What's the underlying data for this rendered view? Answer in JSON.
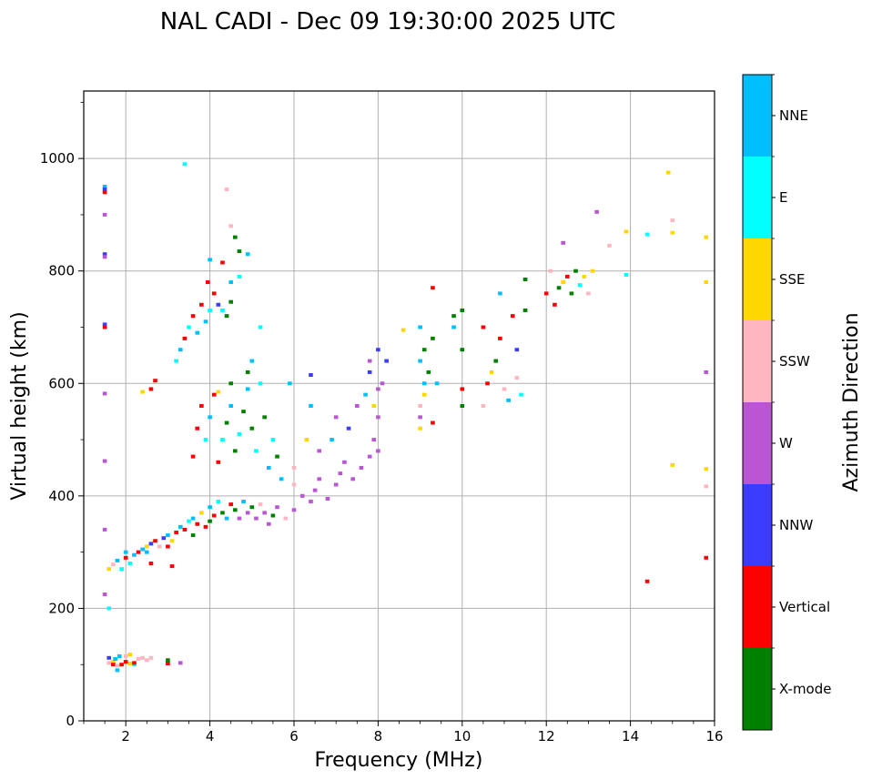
{
  "chart_data": {
    "type": "scatter",
    "title": "NAL CADI - Dec 09 19:30:00 2025 UTC",
    "xlabel": "Frequency (MHz)",
    "ylabel": "Virtual height (km)",
    "xlim": [
      1,
      16
    ],
    "ylim": [
      0,
      1120
    ],
    "xticks": [
      2,
      4,
      6,
      8,
      10,
      12,
      14,
      16
    ],
    "yticks": [
      0,
      200,
      400,
      600,
      800,
      1000
    ],
    "grid": true,
    "colorbar": {
      "label": "Azimuth Direction",
      "position": "right",
      "categories": [
        {
          "name": "X-mode",
          "color": "#008000"
        },
        {
          "name": "Vertical",
          "color": "#ff0000"
        },
        {
          "name": "NNW",
          "color": "#3c3cff"
        },
        {
          "name": "W",
          "color": "#ba55d3"
        },
        {
          "name": "SSW",
          "color": "#ffb6c1"
        },
        {
          "name": "SSE",
          "color": "#ffd700"
        },
        {
          "name": "E",
          "color": "#00ffff"
        },
        {
          "name": "NNE",
          "color": "#00bfff"
        }
      ]
    },
    "points_format": [
      "frequency_MHz",
      "virtual_height_km",
      "azimuth_category"
    ],
    "points": [
      [
        1.5,
        950,
        "NNE"
      ],
      [
        1.5,
        945,
        "NNW"
      ],
      [
        1.5,
        940,
        "Vertical"
      ],
      [
        1.5,
        900,
        "W"
      ],
      [
        1.5,
        830,
        "NNW"
      ],
      [
        1.5,
        825,
        "W"
      ],
      [
        1.5,
        705,
        "NNW"
      ],
      [
        1.5,
        700,
        "Vertical"
      ],
      [
        1.5,
        582,
        "W"
      ],
      [
        1.5,
        462,
        "W"
      ],
      [
        1.5,
        340,
        "W"
      ],
      [
        1.5,
        225,
        "W"
      ],
      [
        1.6,
        200,
        "E"
      ],
      [
        1.6,
        112,
        "NNW"
      ],
      [
        1.6,
        103,
        "SSW"
      ],
      [
        1.7,
        105,
        "SSE"
      ],
      [
        1.7,
        100,
        "Vertical"
      ],
      [
        1.75,
        110,
        "NNE"
      ],
      [
        1.8,
        98,
        "SSW"
      ],
      [
        1.8,
        90,
        "NNE"
      ],
      [
        1.85,
        115,
        "NNE"
      ],
      [
        1.9,
        100,
        "Vertical"
      ],
      [
        2.0,
        115,
        "SSW"
      ],
      [
        2.0,
        105,
        "Vertical"
      ],
      [
        2.1,
        118,
        "SSE"
      ],
      [
        2.1,
        102,
        "SSE"
      ],
      [
        2.2,
        100,
        "E"
      ],
      [
        2.3,
        110,
        "SSW"
      ],
      [
        2.4,
        112,
        "SSW"
      ],
      [
        2.5,
        108,
        "SSW"
      ],
      [
        2.6,
        112,
        "SSW"
      ],
      [
        2.2,
        103,
        "Vertical"
      ],
      [
        3.0,
        108,
        "X-mode"
      ],
      [
        3.0,
        102,
        "Vertical"
      ],
      [
        3.3,
        103,
        "W"
      ],
      [
        1.6,
        270,
        "SSE"
      ],
      [
        1.7,
        278,
        "SSW"
      ],
      [
        1.8,
        285,
        "NNE"
      ],
      [
        1.9,
        270,
        "E"
      ],
      [
        2.0,
        290,
        "Vertical"
      ],
      [
        2.0,
        300,
        "NNE"
      ],
      [
        2.1,
        280,
        "E"
      ],
      [
        2.2,
        295,
        "NNE"
      ],
      [
        2.3,
        300,
        "Vertical"
      ],
      [
        2.4,
        305,
        "NNE"
      ],
      [
        2.5,
        310,
        "SSE"
      ],
      [
        2.5,
        300,
        "NNE"
      ],
      [
        2.6,
        315,
        "NNW"
      ],
      [
        2.7,
        320,
        "Vertical"
      ],
      [
        2.8,
        310,
        "SSW"
      ],
      [
        2.9,
        325,
        "NNW"
      ],
      [
        3.0,
        330,
        "NNE"
      ],
      [
        3.0,
        310,
        "Vertical"
      ],
      [
        3.1,
        320,
        "SSE"
      ],
      [
        3.2,
        335,
        "Vertical"
      ],
      [
        3.3,
        345,
        "NNE"
      ],
      [
        3.4,
        340,
        "Vertical"
      ],
      [
        3.5,
        355,
        "E"
      ],
      [
        3.6,
        330,
        "X-mode"
      ],
      [
        3.6,
        360,
        "NNE"
      ],
      [
        3.7,
        350,
        "Vertical"
      ],
      [
        3.8,
        370,
        "SSE"
      ],
      [
        3.9,
        345,
        "Vertical"
      ],
      [
        4.0,
        355,
        "X-mode"
      ],
      [
        4.0,
        380,
        "NNE"
      ],
      [
        4.1,
        365,
        "Vertical"
      ],
      [
        4.2,
        390,
        "E"
      ],
      [
        4.3,
        370,
        "X-mode"
      ],
      [
        4.4,
        360,
        "NNE"
      ],
      [
        4.5,
        385,
        "Vertical"
      ],
      [
        4.6,
        375,
        "X-mode"
      ],
      [
        4.7,
        360,
        "W"
      ],
      [
        4.8,
        390,
        "NNE"
      ],
      [
        4.9,
        370,
        "W"
      ],
      [
        5.0,
        380,
        "X-mode"
      ],
      [
        5.1,
        360,
        "W"
      ],
      [
        5.2,
        385,
        "SSW"
      ],
      [
        5.3,
        370,
        "W"
      ],
      [
        5.4,
        350,
        "W"
      ],
      [
        5.5,
        365,
        "X-mode"
      ],
      [
        5.6,
        380,
        "W"
      ],
      [
        5.8,
        360,
        "SSW"
      ],
      [
        6.0,
        375,
        "W"
      ],
      [
        3.1,
        275,
        "Vertical"
      ],
      [
        2.6,
        280,
        "Vertical"
      ],
      [
        3.6,
        470,
        "Vertical"
      ],
      [
        3.7,
        520,
        "Vertical"
      ],
      [
        3.8,
        560,
        "Vertical"
      ],
      [
        3.9,
        500,
        "E"
      ],
      [
        4.0,
        540,
        "NNE"
      ],
      [
        4.1,
        580,
        "Vertical"
      ],
      [
        4.2,
        460,
        "Vertical"
      ],
      [
        4.3,
        500,
        "E"
      ],
      [
        4.4,
        530,
        "X-mode"
      ],
      [
        4.5,
        560,
        "NNE"
      ],
      [
        4.6,
        480,
        "X-mode"
      ],
      [
        4.7,
        510,
        "E"
      ],
      [
        4.8,
        550,
        "X-mode"
      ],
      [
        4.9,
        590,
        "NNE"
      ],
      [
        5.0,
        520,
        "X-mode"
      ],
      [
        5.1,
        480,
        "E"
      ],
      [
        5.2,
        600,
        "E"
      ],
      [
        5.3,
        540,
        "X-mode"
      ],
      [
        5.4,
        450,
        "NNE"
      ],
      [
        5.5,
        500,
        "E"
      ],
      [
        5.6,
        470,
        "X-mode"
      ],
      [
        5.7,
        430,
        "NNE"
      ],
      [
        5.9,
        600,
        "NNE"
      ],
      [
        6.0,
        450,
        "SSW"
      ],
      [
        4.9,
        620,
        "X-mode"
      ],
      [
        5.0,
        640,
        "NNE"
      ],
      [
        4.5,
        600,
        "X-mode"
      ],
      [
        4.2,
        585,
        "SSE"
      ],
      [
        3.2,
        640,
        "E"
      ],
      [
        3.3,
        660,
        "NNE"
      ],
      [
        3.4,
        680,
        "Vertical"
      ],
      [
        3.5,
        700,
        "E"
      ],
      [
        3.6,
        720,
        "Vertical"
      ],
      [
        3.7,
        690,
        "NNE"
      ],
      [
        3.8,
        740,
        "Vertical"
      ],
      [
        3.9,
        710,
        "NNE"
      ],
      [
        3.95,
        780,
        "Vertical"
      ],
      [
        4.0,
        730,
        "E"
      ],
      [
        4.1,
        760,
        "Vertical"
      ],
      [
        4.2,
        740,
        "NNW"
      ],
      [
        4.3,
        730,
        "E"
      ],
      [
        4.4,
        720,
        "X-mode"
      ],
      [
        4.0,
        820,
        "NNE"
      ],
      [
        4.3,
        815,
        "Vertical"
      ],
      [
        4.5,
        780,
        "NNE"
      ],
      [
        4.5,
        745,
        "X-mode"
      ],
      [
        4.7,
        790,
        "E"
      ],
      [
        4.6,
        860,
        "X-mode"
      ],
      [
        4.5,
        880,
        "SSW"
      ],
      [
        4.7,
        835,
        "X-mode"
      ],
      [
        4.9,
        830,
        "NNE"
      ],
      [
        4.4,
        945,
        "SSW"
      ],
      [
        3.4,
        990,
        "E"
      ],
      [
        2.7,
        605,
        "Vertical"
      ],
      [
        2.6,
        590,
        "Vertical"
      ],
      [
        2.4,
        585,
        "SSE"
      ],
      [
        5.2,
        700,
        "E"
      ],
      [
        6.0,
        420,
        "SSW"
      ],
      [
        6.2,
        400,
        "W"
      ],
      [
        6.4,
        390,
        "W"
      ],
      [
        6.5,
        410,
        "W"
      ],
      [
        6.6,
        430,
        "W"
      ],
      [
        6.8,
        395,
        "W"
      ],
      [
        7.0,
        420,
        "W"
      ],
      [
        7.1,
        440,
        "W"
      ],
      [
        7.2,
        460,
        "W"
      ],
      [
        7.4,
        430,
        "W"
      ],
      [
        7.6,
        450,
        "W"
      ],
      [
        7.8,
        470,
        "W"
      ],
      [
        8.0,
        480,
        "W"
      ],
      [
        7.9,
        500,
        "W"
      ],
      [
        6.3,
        500,
        "SSE"
      ],
      [
        6.4,
        560,
        "NNE"
      ],
      [
        6.4,
        615,
        "NNW"
      ],
      [
        6.6,
        480,
        "W"
      ],
      [
        6.9,
        500,
        "NNE"
      ],
      [
        7.0,
        540,
        "W"
      ],
      [
        7.3,
        520,
        "NNW"
      ],
      [
        7.5,
        560,
        "W"
      ],
      [
        7.7,
        580,
        "NNE"
      ],
      [
        7.8,
        620,
        "NNW"
      ],
      [
        7.9,
        560,
        "SSE"
      ],
      [
        8.0,
        590,
        "W"
      ],
      [
        8.0,
        540,
        "W"
      ],
      [
        8.1,
        600,
        "W"
      ],
      [
        8.2,
        640,
        "NNW"
      ],
      [
        8.0,
        660,
        "NNW"
      ],
      [
        7.8,
        640,
        "W"
      ],
      [
        8.6,
        695,
        "SSE"
      ],
      [
        9.0,
        520,
        "SSE"
      ],
      [
        9.0,
        540,
        "W"
      ],
      [
        9.0,
        560,
        "SSW"
      ],
      [
        9.1,
        580,
        "SSE"
      ],
      [
        9.1,
        600,
        "NNE"
      ],
      [
        9.2,
        620,
        "X-mode"
      ],
      [
        9.0,
        640,
        "NNE"
      ],
      [
        9.1,
        660,
        "X-mode"
      ],
      [
        9.0,
        700,
        "NNE"
      ],
      [
        9.3,
        680,
        "X-mode"
      ],
      [
        9.4,
        600,
        "NNE"
      ],
      [
        9.3,
        530,
        "Vertical"
      ],
      [
        9.3,
        770,
        "Vertical"
      ],
      [
        9.8,
        720,
        "X-mode"
      ],
      [
        9.8,
        700,
        "NNE"
      ],
      [
        10.0,
        590,
        "Vertical"
      ],
      [
        10.0,
        560,
        "X-mode"
      ],
      [
        10.0,
        660,
        "X-mode"
      ],
      [
        10.0,
        730,
        "X-mode"
      ],
      [
        10.5,
        700,
        "Vertical"
      ],
      [
        10.5,
        560,
        "SSW"
      ],
      [
        10.6,
        600,
        "Vertical"
      ],
      [
        10.7,
        620,
        "SSE"
      ],
      [
        10.8,
        640,
        "X-mode"
      ],
      [
        10.9,
        680,
        "Vertical"
      ],
      [
        10.9,
        760,
        "NNE"
      ],
      [
        11.0,
        590,
        "SSW"
      ],
      [
        11.1,
        570,
        "NNE"
      ],
      [
        11.2,
        720,
        "Vertical"
      ],
      [
        11.3,
        660,
        "NNW"
      ],
      [
        11.3,
        610,
        "SSW"
      ],
      [
        11.4,
        580,
        "E"
      ],
      [
        11.5,
        785,
        "X-mode"
      ],
      [
        11.5,
        730,
        "X-mode"
      ],
      [
        12.0,
        760,
        "Vertical"
      ],
      [
        12.1,
        800,
        "SSW"
      ],
      [
        12.2,
        740,
        "Vertical"
      ],
      [
        12.3,
        770,
        "X-mode"
      ],
      [
        12.4,
        780,
        "SSE"
      ],
      [
        12.5,
        790,
        "Vertical"
      ],
      [
        12.6,
        760,
        "X-mode"
      ],
      [
        12.7,
        800,
        "X-mode"
      ],
      [
        12.8,
        775,
        "E"
      ],
      [
        12.9,
        790,
        "SSE"
      ],
      [
        13.0,
        760,
        "SSW"
      ],
      [
        13.1,
        800,
        "SSE"
      ],
      [
        12.4,
        850,
        "W"
      ],
      [
        13.2,
        905,
        "W"
      ],
      [
        13.5,
        845,
        "SSW"
      ],
      [
        13.9,
        870,
        "SSE"
      ],
      [
        13.9,
        793,
        "E"
      ],
      [
        14.4,
        865,
        "E"
      ],
      [
        14.9,
        975,
        "SSE"
      ],
      [
        15.0,
        890,
        "SSW"
      ],
      [
        15.0,
        868,
        "SSE"
      ],
      [
        15.0,
        455,
        "SSE"
      ],
      [
        14.4,
        248,
        "Vertical"
      ],
      [
        15.8,
        860,
        "SSE"
      ],
      [
        15.8,
        780,
        "SSE"
      ],
      [
        15.8,
        620,
        "W"
      ],
      [
        15.8,
        448,
        "SSE"
      ],
      [
        15.8,
        417,
        "SSW"
      ],
      [
        15.8,
        290,
        "Vertical"
      ]
    ]
  }
}
